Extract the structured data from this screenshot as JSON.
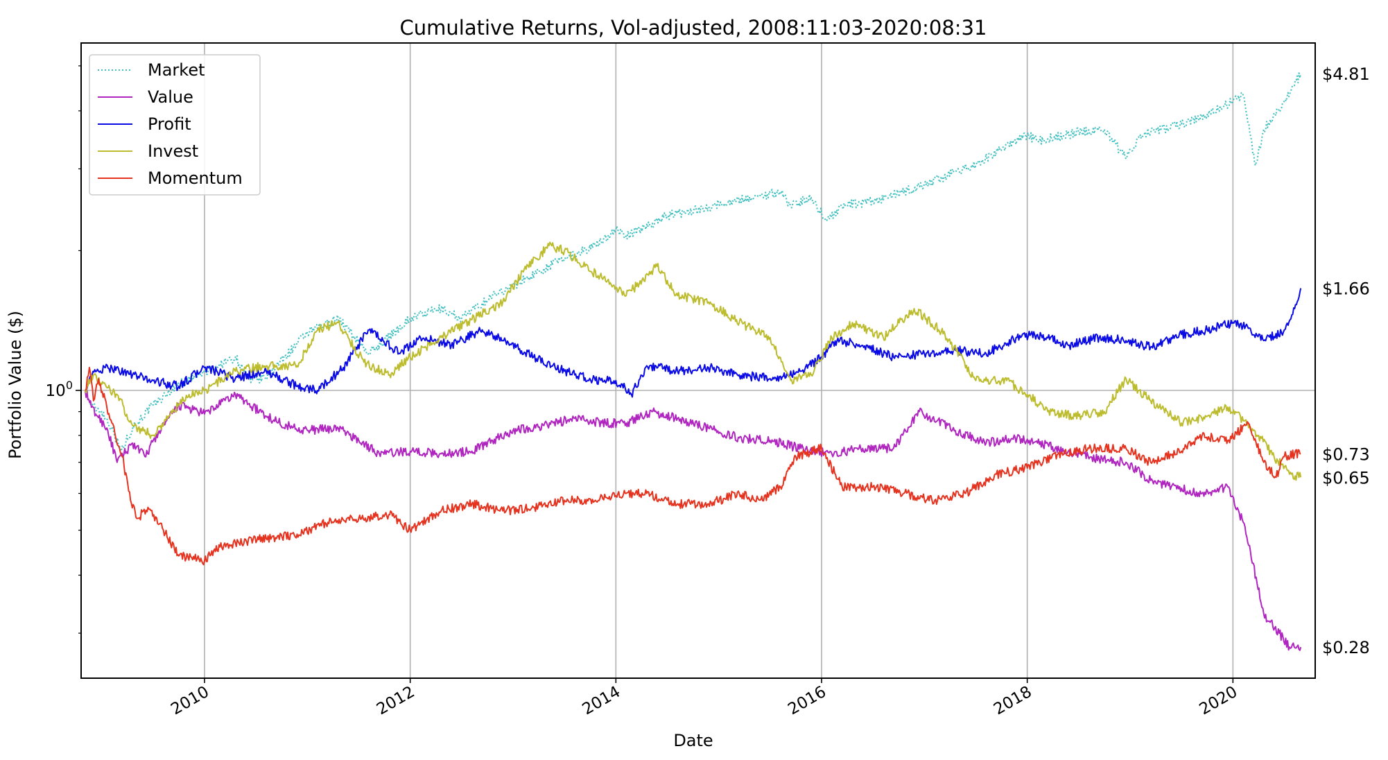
{
  "chart_data": {
    "type": "line",
    "title": "Cumulative Returns, Vol-adjusted, 2008:11:03-2020:08:31",
    "xlabel": "Date",
    "ylabel": "Portfolio Value ($)",
    "yscale": "log",
    "xlim": [
      2008.8,
      2020.8
    ],
    "ylim": [
      0.24,
      5.6
    ],
    "grid": true,
    "legend_position": "top-left",
    "x_ticks": [
      2010,
      2012,
      2014,
      2016,
      2018,
      2020
    ],
    "y_tick_labels": [
      {
        "value": 1,
        "base": "10",
        "exp": "0"
      }
    ],
    "end_labels": [
      {
        "value": 4.81,
        "text": "$4.81"
      },
      {
        "value": 1.66,
        "text": "$1.66"
      },
      {
        "value": 0.73,
        "text": "$0.73"
      },
      {
        "value": 0.65,
        "text": "$0.65"
      },
      {
        "value": 0.28,
        "text": "$0.28"
      }
    ],
    "series": [
      {
        "name": "Market",
        "color": "#3fbfbf",
        "dash": "dotted",
        "x": [
          2008.84,
          2008.9,
          2009.0,
          2009.1,
          2009.19,
          2009.3,
          2009.5,
          2009.75,
          2010.0,
          2010.3,
          2010.45,
          2010.6,
          2011.0,
          2011.3,
          2011.6,
          2011.75,
          2012.0,
          2012.3,
          2012.5,
          2012.8,
          2013.0,
          2013.5,
          2013.8,
          2014.0,
          2014.1,
          2014.5,
          2014.8,
          2015.0,
          2015.4,
          2015.6,
          2015.7,
          2015.9,
          2016.05,
          2016.2,
          2016.5,
          2016.9,
          2017.5,
          2018.0,
          2018.1,
          2018.2,
          2018.5,
          2018.75,
          2018.96,
          2019.1,
          2019.3,
          2019.5,
          2019.75,
          2020.0,
          2020.1,
          2020.22,
          2020.3,
          2020.5,
          2020.66
        ],
        "values": [
          1.0,
          0.93,
          0.9,
          0.83,
          0.74,
          0.83,
          0.93,
          1.03,
          1.09,
          1.18,
          1.04,
          1.07,
          1.33,
          1.43,
          1.2,
          1.28,
          1.43,
          1.5,
          1.43,
          1.6,
          1.68,
          1.93,
          2.05,
          2.22,
          2.15,
          2.38,
          2.45,
          2.52,
          2.62,
          2.68,
          2.5,
          2.6,
          2.32,
          2.5,
          2.55,
          2.72,
          3.07,
          3.55,
          3.45,
          3.48,
          3.6,
          3.65,
          3.15,
          3.55,
          3.65,
          3.75,
          3.93,
          4.2,
          4.32,
          3.05,
          3.65,
          4.2,
          4.81
        ]
      },
      {
        "name": "Value",
        "color": "#b025c0",
        "dash": "solid",
        "x": [
          2008.84,
          2008.9,
          2008.96,
          2009.05,
          2009.15,
          2009.3,
          2009.42,
          2009.55,
          2009.75,
          2010.0,
          2010.3,
          2010.6,
          2010.8,
          2011.0,
          2011.3,
          2011.5,
          2011.7,
          2012.0,
          2012.3,
          2012.6,
          2012.8,
          2013.0,
          2013.3,
          2013.6,
          2013.9,
          2014.1,
          2014.35,
          2014.6,
          2014.9,
          2015.2,
          2015.5,
          2015.8,
          2016.1,
          2016.4,
          2016.7,
          2016.95,
          2017.3,
          2017.6,
          2017.9,
          2018.1,
          2018.4,
          2018.7,
          2018.96,
          2019.2,
          2019.4,
          2019.7,
          2019.95,
          2020.1,
          2020.17,
          2020.3,
          2020.45,
          2020.55,
          2020.66
        ],
        "values": [
          1.0,
          0.92,
          0.88,
          0.83,
          0.7,
          0.77,
          0.72,
          0.81,
          0.93,
          0.89,
          0.98,
          0.88,
          0.84,
          0.82,
          0.83,
          0.78,
          0.73,
          0.74,
          0.73,
          0.74,
          0.78,
          0.82,
          0.84,
          0.87,
          0.85,
          0.85,
          0.9,
          0.87,
          0.83,
          0.79,
          0.78,
          0.75,
          0.73,
          0.75,
          0.75,
          0.9,
          0.82,
          0.77,
          0.79,
          0.77,
          0.74,
          0.71,
          0.7,
          0.64,
          0.62,
          0.6,
          0.62,
          0.52,
          0.45,
          0.33,
          0.3,
          0.28,
          0.28
        ]
      },
      {
        "name": "Profit",
        "color": "#0a0ae6",
        "dash": "solid",
        "x": [
          2008.84,
          2008.88,
          2008.95,
          2009.1,
          2009.3,
          2009.5,
          2009.75,
          2010.0,
          2010.3,
          2010.6,
          2010.9,
          2011.1,
          2011.35,
          2011.6,
          2011.9,
          2012.1,
          2012.4,
          2012.7,
          2012.9,
          2013.2,
          2013.5,
          2013.8,
          2014.0,
          2014.15,
          2014.3,
          2014.6,
          2014.9,
          2015.2,
          2015.5,
          2015.8,
          2016.0,
          2016.15,
          2016.4,
          2016.7,
          2017.0,
          2017.3,
          2017.6,
          2017.9,
          2018.1,
          2018.4,
          2018.7,
          2018.96,
          2019.2,
          2019.5,
          2019.75,
          2020.0,
          2020.15,
          2020.3,
          2020.5,
          2020.6,
          2020.66
        ],
        "values": [
          1.0,
          1.06,
          1.1,
          1.12,
          1.08,
          1.05,
          1.02,
          1.12,
          1.06,
          1.1,
          1.02,
          1.0,
          1.12,
          1.35,
          1.2,
          1.3,
          1.25,
          1.35,
          1.28,
          1.18,
          1.1,
          1.05,
          1.05,
          0.98,
          1.13,
          1.1,
          1.12,
          1.08,
          1.06,
          1.1,
          1.18,
          1.28,
          1.25,
          1.18,
          1.2,
          1.22,
          1.2,
          1.3,
          1.32,
          1.25,
          1.3,
          1.28,
          1.24,
          1.32,
          1.35,
          1.4,
          1.36,
          1.28,
          1.35,
          1.5,
          1.66
        ]
      },
      {
        "name": "Invest",
        "color": "#bcbc2e",
        "dash": "solid",
        "x": [
          2008.84,
          2008.9,
          2009.0,
          2009.15,
          2009.3,
          2009.5,
          2009.65,
          2009.85,
          2010.0,
          2010.3,
          2010.6,
          2010.9,
          2011.1,
          2011.3,
          2011.55,
          2011.8,
          2012.0,
          2012.3,
          2012.6,
          2012.9,
          2013.1,
          2013.35,
          2013.5,
          2013.7,
          2013.9,
          2014.1,
          2014.4,
          2014.6,
          2014.9,
          2015.2,
          2015.5,
          2015.7,
          2015.9,
          2016.1,
          2016.3,
          2016.6,
          2016.9,
          2017.2,
          2017.5,
          2017.8,
          2018.0,
          2018.2,
          2018.5,
          2018.75,
          2018.96,
          2019.2,
          2019.5,
          2019.75,
          2019.95,
          2020.1,
          2020.25,
          2020.4,
          2020.55,
          2020.66
        ],
        "values": [
          1.0,
          1.08,
          1.03,
          0.98,
          0.84,
          0.8,
          0.88,
          0.98,
          1.0,
          1.1,
          1.13,
          1.13,
          1.35,
          1.4,
          1.15,
          1.08,
          1.18,
          1.3,
          1.42,
          1.55,
          1.8,
          2.05,
          2.0,
          1.85,
          1.72,
          1.6,
          1.85,
          1.6,
          1.55,
          1.4,
          1.3,
          1.05,
          1.08,
          1.3,
          1.4,
          1.3,
          1.5,
          1.32,
          1.05,
          1.05,
          0.98,
          0.9,
          0.88,
          0.9,
          1.06,
          0.95,
          0.85,
          0.88,
          0.92,
          0.86,
          0.8,
          0.72,
          0.66,
          0.65
        ]
      },
      {
        "name": "Momentum",
        "color": "#e5331f",
        "dash": "solid",
        "x": [
          2008.84,
          2008.88,
          2008.92,
          2008.97,
          2009.05,
          2009.1,
          2009.2,
          2009.28,
          2009.35,
          2009.45,
          2009.6,
          2009.75,
          2010.0,
          2010.15,
          2010.3,
          2010.6,
          2010.9,
          2011.2,
          2011.5,
          2011.8,
          2012.0,
          2012.3,
          2012.6,
          2012.9,
          2013.2,
          2013.5,
          2013.8,
          2014.1,
          2014.3,
          2014.6,
          2014.9,
          2015.2,
          2015.4,
          2015.6,
          2015.75,
          2016.0,
          2016.2,
          2016.5,
          2016.8,
          2017.1,
          2017.4,
          2017.7,
          2018.0,
          2018.3,
          2018.6,
          2018.96,
          2019.2,
          2019.5,
          2019.7,
          2019.95,
          2020.15,
          2020.3,
          2020.42,
          2020.5,
          2020.6,
          2020.66
        ],
        "values": [
          1.0,
          1.12,
          0.95,
          1.06,
          0.92,
          0.85,
          0.72,
          0.58,
          0.53,
          0.56,
          0.5,
          0.44,
          0.43,
          0.46,
          0.47,
          0.48,
          0.49,
          0.52,
          0.53,
          0.54,
          0.5,
          0.55,
          0.57,
          0.55,
          0.56,
          0.58,
          0.58,
          0.6,
          0.6,
          0.57,
          0.57,
          0.6,
          0.58,
          0.62,
          0.72,
          0.75,
          0.62,
          0.62,
          0.6,
          0.58,
          0.6,
          0.66,
          0.68,
          0.73,
          0.75,
          0.75,
          0.7,
          0.74,
          0.8,
          0.78,
          0.85,
          0.7,
          0.65,
          0.72,
          0.73,
          0.73
        ]
      }
    ]
  }
}
